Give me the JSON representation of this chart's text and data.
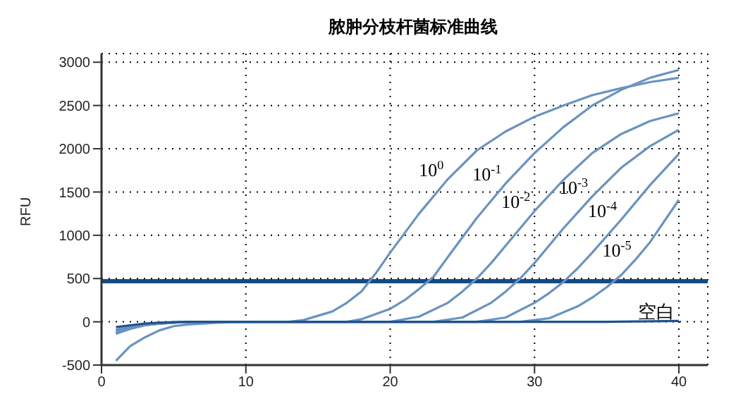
{
  "chart_data": {
    "type": "line",
    "title": "脓肿分枝杆菌标准曲线",
    "ylabel": "RFU",
    "xlim": [
      0,
      42
    ],
    "xticks": [
      0,
      10,
      20,
      30,
      40
    ],
    "ylim": [
      -500,
      3100
    ],
    "yticks": [
      -500,
      0,
      500,
      1000,
      1500,
      2000,
      2500,
      3000
    ],
    "grid": true,
    "legend": false,
    "marker": "none",
    "line_style": "solid",
    "ref_lines": [
      {
        "axis": "y",
        "value": 470,
        "color": "#144b86"
      }
    ],
    "series": [
      {
        "name": "10$^{0}$",
        "color": "#6a93bf",
        "x": [
          1,
          2,
          3,
          4,
          5,
          6,
          8,
          10,
          13,
          14,
          16,
          17,
          18,
          19,
          20,
          22,
          24,
          26,
          28,
          30,
          32,
          34,
          36,
          38,
          40
        ],
        "values": [
          -450,
          -280,
          -180,
          -100,
          -50,
          -30,
          -10,
          0,
          0,
          20,
          120,
          220,
          350,
          560,
          800,
          1250,
          1650,
          1980,
          2200,
          2370,
          2500,
          2620,
          2700,
          2770,
          2820
        ]
      },
      {
        "name": "10$^{-1}$",
        "color": "#6a93bf",
        "x": [
          1,
          2,
          3,
          4,
          6,
          8,
          17,
          18,
          20,
          21,
          22,
          23,
          24,
          26,
          28,
          30,
          32,
          34,
          36,
          38,
          40
        ],
        "values": [
          -120,
          -70,
          -40,
          -20,
          0,
          0,
          0,
          30,
          150,
          250,
          380,
          520,
          750,
          1200,
          1600,
          1950,
          2250,
          2500,
          2680,
          2820,
          2910
        ]
      },
      {
        "name": "10$^{-2}$",
        "color": "#6a93bf",
        "x": [
          1,
          2,
          3,
          4,
          6,
          8,
          20,
          22,
          24,
          25,
          26,
          27,
          28,
          30,
          32,
          34,
          36,
          38,
          40
        ],
        "values": [
          -130,
          -80,
          -40,
          -20,
          0,
          0,
          0,
          60,
          220,
          350,
          500,
          680,
          880,
          1280,
          1640,
          1950,
          2170,
          2320,
          2410
        ]
      },
      {
        "name": "10$^{-3}$",
        "color": "#6a93bf",
        "x": [
          1,
          2,
          3,
          4,
          6,
          8,
          23,
          25,
          27,
          28,
          29,
          30,
          32,
          34,
          36,
          38,
          40
        ],
        "values": [
          -100,
          -60,
          -30,
          -20,
          0,
          0,
          0,
          50,
          220,
          350,
          500,
          680,
          1080,
          1450,
          1780,
          2030,
          2220
        ]
      },
      {
        "name": "10$^{-4}$",
        "color": "#6a93bf",
        "x": [
          1,
          2,
          3,
          4,
          6,
          8,
          26,
          28,
          30,
          31,
          32,
          33,
          34,
          36,
          38,
          40
        ],
        "values": [
          -140,
          -80,
          -40,
          -20,
          0,
          0,
          0,
          50,
          220,
          330,
          460,
          620,
          800,
          1180,
          1580,
          1940
        ]
      },
      {
        "name": "10$^{-5}$",
        "color": "#6a93bf",
        "x": [
          1,
          2,
          3,
          4,
          6,
          8,
          29,
          31,
          33,
          34,
          35,
          36,
          37,
          38,
          40
        ],
        "values": [
          -90,
          -50,
          -30,
          -10,
          0,
          0,
          0,
          40,
          180,
          280,
          400,
          540,
          720,
          920,
          1410
        ]
      },
      {
        "name": "空白",
        "color": "#1d5390",
        "x": [
          1,
          2,
          3,
          4,
          6,
          8,
          20,
          30,
          35,
          40
        ],
        "values": [
          -60,
          -40,
          -20,
          -10,
          0,
          0,
          0,
          0,
          0,
          10
        ]
      }
    ]
  }
}
